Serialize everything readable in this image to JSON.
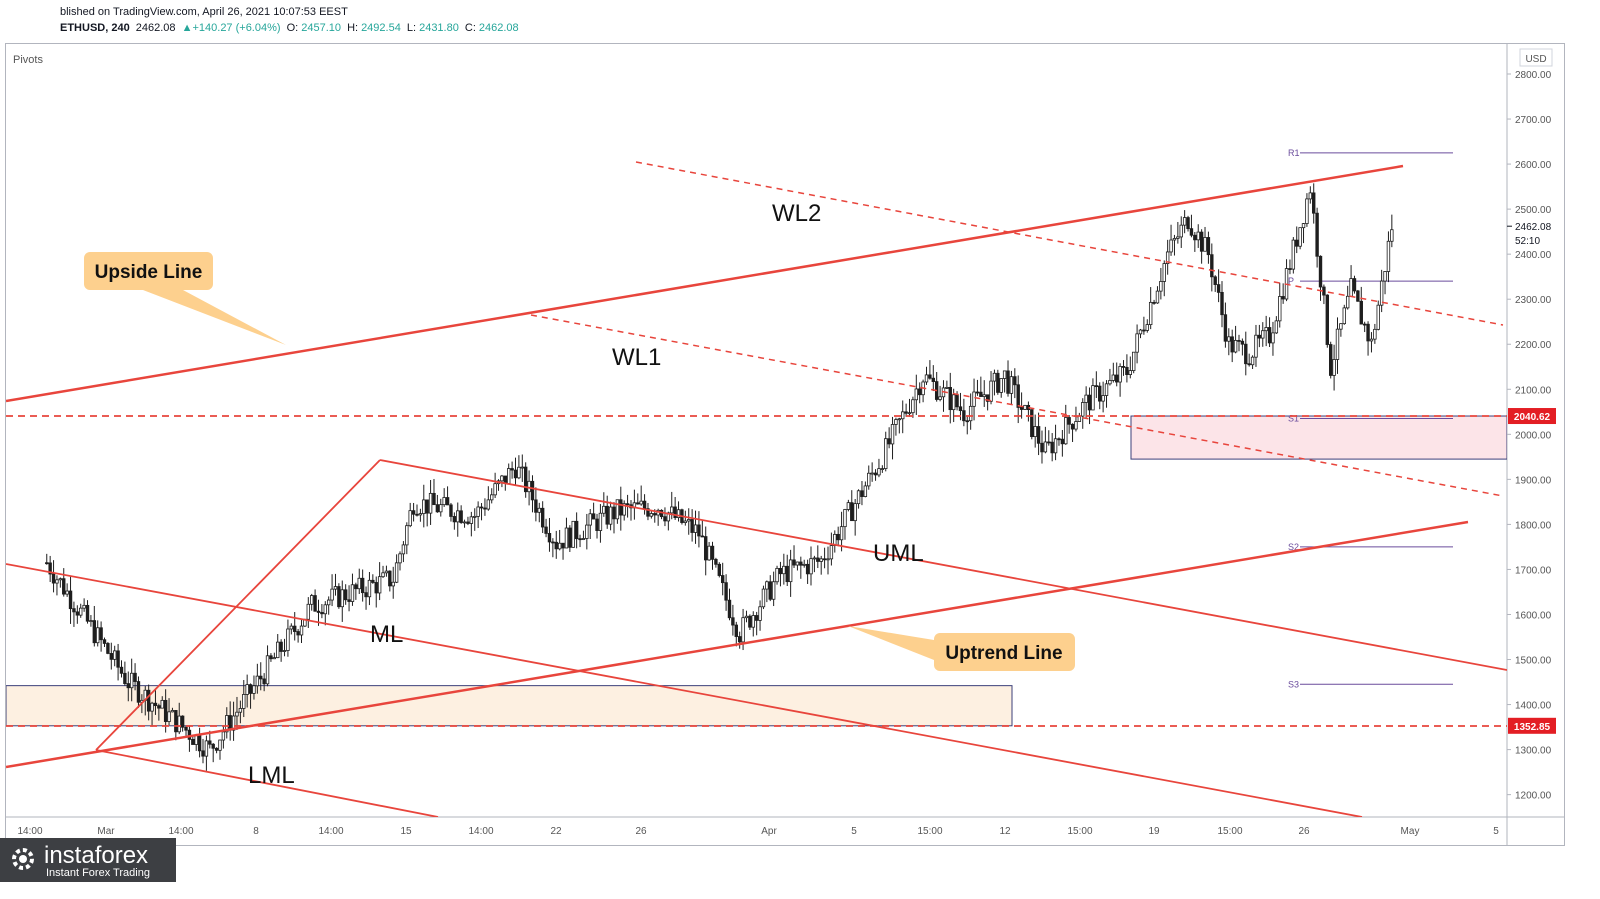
{
  "header": {
    "published": "blished on TradingView.com, April 26, 2021 10:07:53 EEST",
    "symbol": "ETHUSD, 240",
    "price": "2462.08",
    "change": "▲+140.27 (+6.04%)",
    "o_label": "O:",
    "o_value": "2457.10",
    "h_label": "H:",
    "h_value": "2492.54",
    "l_label": "L:",
    "l_value": "2431.80",
    "c_label": "C:",
    "c_value": "2462.08"
  },
  "indicator_label": "Pivots",
  "currency": "USD",
  "countdown": "52:10",
  "watermark": {
    "brand": "instaforex",
    "tagline": "Instant Forex Trading"
  },
  "colors": {
    "line_red": "#e8453c",
    "candle": "#1e1e1e",
    "pivot": "#6a4c9c",
    "zone_top": "#fce4e8",
    "zone_bottom": "#fdf0e1",
    "callout": "#fdd08e",
    "price_tag": "#e31e24"
  },
  "chart_data": {
    "type": "candlestick",
    "symbol": "ETHUSD",
    "timeframe": "240",
    "ylim": [
      1150,
      2850
    ],
    "y_ticks": [
      "2800.00",
      "2700.00",
      "2600.00",
      "2500.00",
      "2400.00",
      "2300.00",
      "2200.00",
      "2100.00",
      "2000.00",
      "1900.00",
      "1800.00",
      "1700.00",
      "1600.00",
      "1500.00",
      "1400.00",
      "1300.00",
      "1200.00"
    ],
    "x_ticks": [
      "14:00",
      "Mar",
      "14:00",
      "8",
      "14:00",
      "15",
      "14:00",
      "22",
      "26",
      "Apr",
      "5",
      "15:00",
      "12",
      "15:00",
      "19",
      "15:00",
      "26",
      "May",
      "5"
    ],
    "last_price": "2462.08",
    "price_tags": [
      "2040.62",
      "1352.85"
    ],
    "pivot_labels": [
      "R1",
      "P",
      "S1",
      "S2",
      "S3"
    ],
    "annotations": {
      "upside_line": "Upside Line",
      "uptrend_line": "Uptrend Line",
      "wl1": "WL1",
      "wl2": "WL2",
      "uml": "UML",
      "ml": "ML",
      "lml": "LML"
    },
    "anchors": [
      {
        "x": "Feb 20",
        "y": 1715
      },
      {
        "x": "Feb 24",
        "y": 1450
      },
      {
        "x": "Feb 28",
        "y": 1300
      },
      {
        "x": "Mar 4",
        "y": 1620
      },
      {
        "x": "Mar 8",
        "y": 1680
      },
      {
        "x": "Mar 9",
        "y": 1850
      },
      {
        "x": "Mar 12",
        "y": 1820
      },
      {
        "x": "Mar 14",
        "y": 1930
      },
      {
        "x": "Mar 16",
        "y": 1760
      },
      {
        "x": "Mar 19",
        "y": 1830
      },
      {
        "x": "Mar 21",
        "y": 1840
      },
      {
        "x": "Mar 23",
        "y": 1780
      },
      {
        "x": "Mar 25",
        "y": 1560
      },
      {
        "x": "Mar 27",
        "y": 1690
      },
      {
        "x": "Mar 29",
        "y": 1720
      },
      {
        "x": "Apr 1",
        "y": 1950
      },
      {
        "x": "Apr 3",
        "y": 2130
      },
      {
        "x": "Apr 5",
        "y": 2050
      },
      {
        "x": "Apr 7",
        "y": 2130
      },
      {
        "x": "Apr 9",
        "y": 1960
      },
      {
        "x": "Apr 11",
        "y": 2070
      },
      {
        "x": "Apr 13",
        "y": 2140
      },
      {
        "x": "Apr 15",
        "y": 2400
      },
      {
        "x": "Apr 16",
        "y": 2480
      },
      {
        "x": "Apr 17",
        "y": 2400
      },
      {
        "x": "Apr 18",
        "y": 2200
      },
      {
        "x": "Apr 19",
        "y": 2180
      },
      {
        "x": "Apr 20",
        "y": 2220
      },
      {
        "x": "Apr 21",
        "y": 2380
      },
      {
        "x": "Apr 22",
        "y": 2550
      },
      {
        "x": "Apr 23",
        "y": 2150
      },
      {
        "x": "Apr 24",
        "y": 2320
      },
      {
        "x": "Apr 25",
        "y": 2200
      },
      {
        "x": "Apr 26",
        "y": 2462
      }
    ]
  }
}
